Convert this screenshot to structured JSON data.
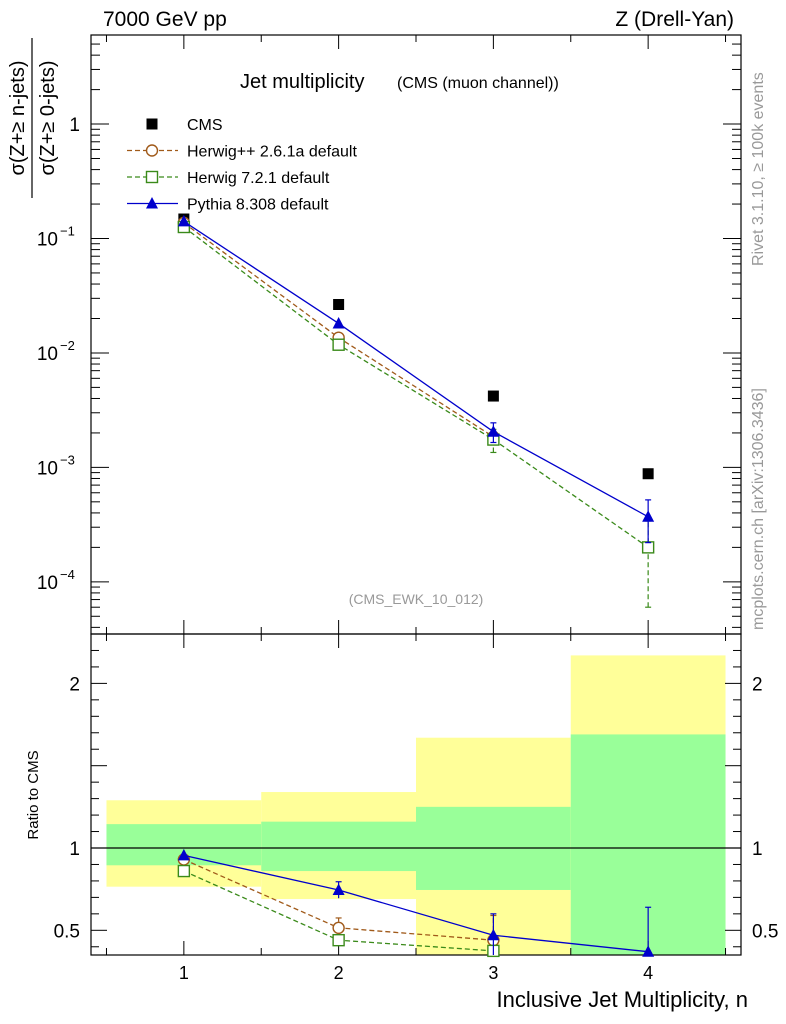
{
  "header": {
    "left": "7000 GeV pp",
    "right": "Z (Drell-Yan)"
  },
  "side_labels": {
    "rivet": "Rivet 3.1.10, ≥ 100k events",
    "mcplots": "mcplots.cern.ch [arXiv:1306.3436]"
  },
  "chart_data": {
    "type": "scatter",
    "title": "Jet multiplicity",
    "subtitle": "(CMS (muon channel))",
    "analysis_tag": "(CMS_EWK_10_012)",
    "xlabel": "Inclusive Jet Multiplicity, n",
    "xlim": [
      0.4,
      4.6
    ],
    "x_ticks": [
      "1",
      "2",
      "3",
      "4"
    ],
    "main": {
      "ylabel_num": "σ(Z+≥ n-jets)",
      "ylabel_den": "σ(Z+≥ 0-jets)",
      "yscale": "log",
      "ylim": [
        3.5e-05,
        6
      ],
      "y_ticks": [
        {
          "value": 1,
          "label": "1"
        },
        {
          "value": 0.1,
          "label": "10",
          "exp": "−1"
        },
        {
          "value": 0.01,
          "label": "10",
          "exp": "−2"
        },
        {
          "value": 0.001,
          "label": "10",
          "exp": "−3"
        },
        {
          "value": 0.0001,
          "label": "10",
          "exp": "−4"
        }
      ],
      "legend_position": "top-left",
      "series": [
        {
          "name": "CMS",
          "color": "#000000",
          "marker": "filled-square",
          "line": "none",
          "x": [
            1,
            2,
            3,
            4
          ],
          "y": [
            0.148,
            0.0265,
            0.0042,
            0.00088
          ]
        },
        {
          "name": "Herwig++ 2.6.1a default",
          "color": "#a05a1a",
          "marker": "open-circle",
          "line": "dashed",
          "x": [
            1,
            2,
            3
          ],
          "y": [
            0.137,
            0.0136,
            0.00185
          ]
        },
        {
          "name": "Herwig 7.2.1 default",
          "color": "#3a8a1a",
          "marker": "open-square",
          "line": "dashed",
          "x": [
            1,
            2,
            3,
            4
          ],
          "y": [
            0.126,
            0.0118,
            0.00175,
            0.0002
          ],
          "y_err_low": [
            0,
            0,
            0.0004,
            0.00014
          ],
          "y_err_high": [
            0,
            0,
            0.0004,
            0.00014
          ]
        },
        {
          "name": "Pythia 8.308 default",
          "color": "#0000cc",
          "marker": "filled-triangle",
          "line": "solid",
          "x": [
            1,
            2,
            3,
            4
          ],
          "y": [
            0.141,
            0.0181,
            0.00205,
            0.00037
          ],
          "y_err_low": [
            0,
            0,
            0.0004,
            0.00015
          ],
          "y_err_high": [
            0,
            0,
            0.0004,
            0.00015
          ]
        }
      ]
    },
    "ratio": {
      "ylabel": "Ratio to CMS",
      "ylim": [
        0.35,
        2.3
      ],
      "y_ticks": [
        0.5,
        1,
        2
      ],
      "reference_line": 1,
      "bands": [
        {
          "x_range": [
            0.5,
            1.5
          ],
          "inner": [
            0.895,
            1.145
          ],
          "outer": [
            0.765,
            1.29
          ]
        },
        {
          "x_range": [
            1.5,
            2.5
          ],
          "inner": [
            0.86,
            1.16
          ],
          "outer": [
            0.69,
            1.34
          ]
        },
        {
          "x_range": [
            2.5,
            3.5
          ],
          "inner": [
            0.745,
            1.25
          ],
          "outer": [
            0.35,
            1.67
          ]
        },
        {
          "x_range": [
            3.5,
            4.5
          ],
          "inner": [
            0.35,
            1.69
          ],
          "outer": [
            0.35,
            2.17
          ]
        }
      ],
      "band_colors": {
        "inner": "#99ff99",
        "outer": "#ffff99"
      },
      "series": [
        {
          "name": "Herwig++ 2.6.1a default",
          "x": [
            1,
            2,
            3
          ],
          "y": [
            0.93,
            0.515,
            0.44
          ],
          "y_err_low": [
            0,
            0.06,
            0.15
          ],
          "y_err_high": [
            0,
            0.06,
            0.15
          ]
        },
        {
          "name": "Herwig 7.2.1 default",
          "x": [
            1,
            2,
            3
          ],
          "y": [
            0.86,
            0.44,
            0.375
          ],
          "y_err_low": [
            0,
            0,
            0
          ],
          "y_err_high": [
            0,
            0,
            0
          ]
        },
        {
          "name": "Pythia 8.308 default",
          "x": [
            1,
            2,
            3,
            4
          ],
          "y": [
            0.955,
            0.745,
            0.47,
            0.37
          ],
          "y_err_low": [
            0,
            0.05,
            0.13,
            0.27
          ],
          "y_err_high": [
            0,
            0.05,
            0.13,
            0.27
          ]
        }
      ]
    }
  }
}
